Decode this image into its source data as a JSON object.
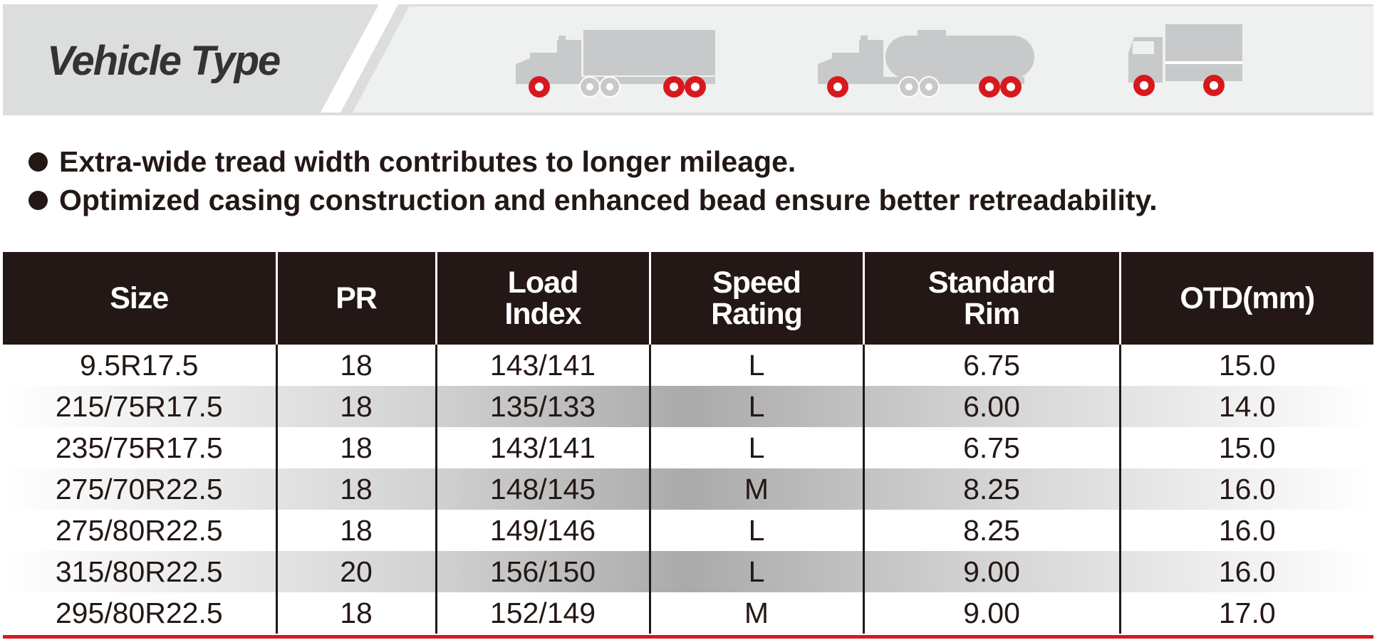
{
  "header": {
    "title": "Vehicle Type",
    "vehicles": [
      {
        "icon": "tractor-trailer-icon"
      },
      {
        "icon": "tanker-truck-icon"
      },
      {
        "icon": "box-truck-icon"
      }
    ]
  },
  "features": [
    "Extra-wide tread width contributes to longer mileage.",
    "Optimized casing construction and enhanced bead ensure better retreadability."
  ],
  "table": {
    "headers": {
      "size": "Size",
      "pr": "PR",
      "load_1": "Load",
      "load_2": "Index",
      "speed_1": "Speed",
      "speed_2": "Rating",
      "rim_1": "Standard",
      "rim_2": "Rim",
      "otd": "OTD(mm)"
    },
    "rows": [
      {
        "size": "9.5R17.5",
        "pr": "18",
        "load_index": "143/141",
        "speed_rating": "L",
        "standard_rim": "6.75",
        "otd": "15.0"
      },
      {
        "size": "215/75R17.5",
        "pr": "18",
        "load_index": "135/133",
        "speed_rating": "L",
        "standard_rim": "6.00",
        "otd": "14.0"
      },
      {
        "size": "235/75R17.5",
        "pr": "18",
        "load_index": "143/141",
        "speed_rating": "L",
        "standard_rim": "6.75",
        "otd": "15.0"
      },
      {
        "size": "275/70R22.5",
        "pr": "18",
        "load_index": "148/145",
        "speed_rating": "M",
        "standard_rim": "8.25",
        "otd": "16.0"
      },
      {
        "size": "275/80R22.5",
        "pr": "18",
        "load_index": "149/146",
        "speed_rating": "L",
        "standard_rim": "8.25",
        "otd": "16.0"
      },
      {
        "size": "315/80R22.5",
        "pr": "20",
        "load_index": "156/150",
        "speed_rating": "L",
        "standard_rim": "9.00",
        "otd": "16.0"
      },
      {
        "size": "295/80R22.5",
        "pr": "18",
        "load_index": "152/149",
        "speed_rating": "M",
        "standard_rim": "9.00",
        "otd": "17.0"
      }
    ]
  },
  "colors": {
    "dark": "#231815",
    "accent_red": "#d7191f",
    "icon_gray": "#c8c9ca",
    "band_gray": "#dcdddd"
  }
}
